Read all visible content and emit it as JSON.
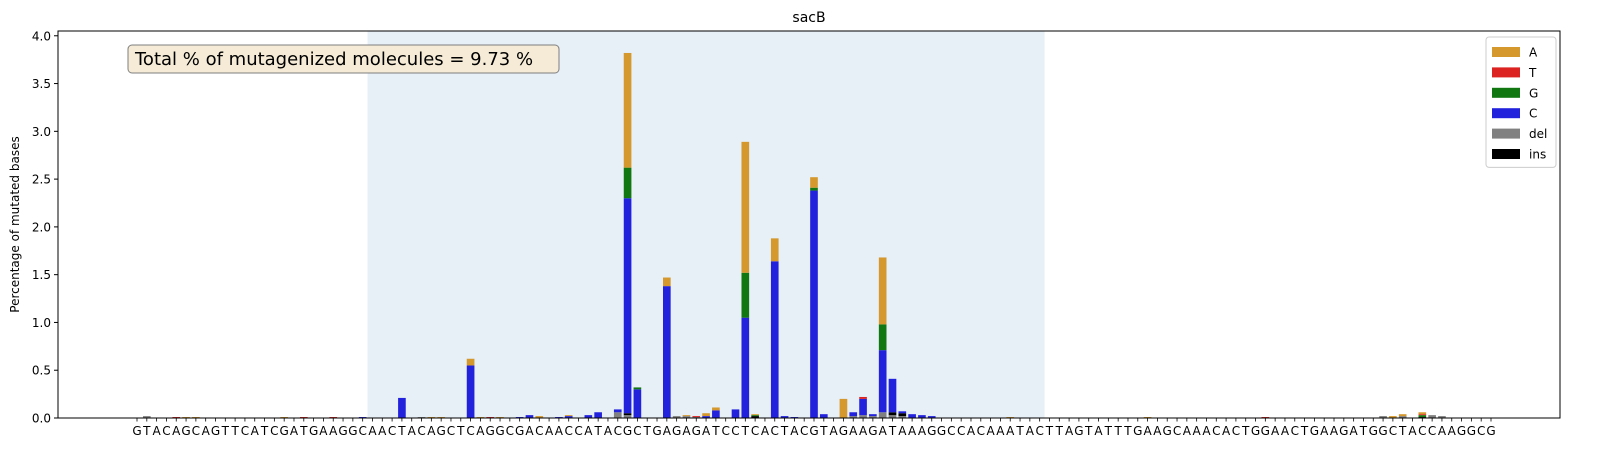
{
  "chart_data": {
    "type": "bar",
    "stacked": true,
    "title": "sacB",
    "xlabel": "",
    "ylabel": "Percentage of mutated bases",
    "ylim": [
      0,
      4.05
    ],
    "yticks": [
      "0.0",
      "0.5",
      "1.0",
      "1.5",
      "2.0",
      "2.5",
      "3.0",
      "3.5",
      "4.0"
    ],
    "legend_position": "top-right",
    "grid": false,
    "annotation": "Total % of mutagenized molecules = 9.73 %",
    "highlight_region": {
      "start_index": 24,
      "end_index": 93
    },
    "categories": [
      "G",
      "T",
      "A",
      "C",
      "A",
      "G",
      "C",
      "A",
      "G",
      "T",
      "T",
      "C",
      "A",
      "T",
      "C",
      "G",
      "A",
      "T",
      "G",
      "A",
      "A",
      "G",
      "G",
      "C",
      "A",
      "A",
      "C",
      "T",
      "A",
      "C",
      "A",
      "G",
      "C",
      "T",
      "C",
      "A",
      "G",
      "G",
      "C",
      "G",
      "A",
      "C",
      "A",
      "A",
      "C",
      "C",
      "A",
      "T",
      "A",
      "C",
      "G",
      "C",
      "T",
      "G",
      "A",
      "G",
      "A",
      "G",
      "A",
      "T",
      "C",
      "C",
      "T",
      "C",
      "A",
      "C",
      "T",
      "A",
      "C",
      "G",
      "T",
      "A",
      "G",
      "A",
      "A",
      "G",
      "A",
      "T",
      "A",
      "A",
      "A",
      "G",
      "G",
      "C",
      "C",
      "A",
      "C",
      "A",
      "A",
      "A",
      "T",
      "A",
      "C",
      "T",
      "T",
      "A",
      "G",
      "T",
      "A",
      "T",
      "T",
      "T",
      "G",
      "A",
      "A",
      "G",
      "C",
      "A",
      "A",
      "A",
      "C",
      "A",
      "C",
      "T",
      "G",
      "G",
      "A",
      "A",
      "C",
      "T",
      "G",
      "A",
      "A",
      "G",
      "A",
      "T",
      "G",
      "G",
      "C",
      "T",
      "A",
      "C",
      "C",
      "A",
      "A",
      "G",
      "G",
      "C",
      "G"
    ],
    "series": [
      {
        "name": "del",
        "color": "#808080",
        "values": {
          "1": 0.02,
          "29": 0.01,
          "49": 0.06,
          "50": 0.03,
          "55": 0.02,
          "56": 0.02,
          "57": 0.01,
          "73": 0.02,
          "74": 0.03,
          "75": 0.02,
          "76": 0.06,
          "77": 0.03,
          "78": 0.02,
          "127": 0.02,
          "129": 0.02,
          "132": 0.03,
          "133": 0.02
        }
      },
      {
        "name": "ins",
        "color": "#000000",
        "values": {
          "50": 0.02,
          "63": 0.02,
          "77": 0.03,
          "78": 0.03,
          "131": 0.01
        }
      },
      {
        "name": "C",
        "color": "#2222dd",
        "values": {
          "23": 0.01,
          "27": 0.21,
          "34": 0.55,
          "39": 0.01,
          "40": 0.03,
          "43": 0.01,
          "44": 0.02,
          "46": 0.03,
          "47": 0.06,
          "49": 0.03,
          "50": 2.25,
          "51": 0.3,
          "54": 1.38,
          "58": 0.02,
          "59": 0.08,
          "61": 0.09,
          "62": 1.05,
          "65": 1.64,
          "66": 0.02,
          "67": 0.01,
          "69": 2.38,
          "70": 0.04,
          "73": 0.04,
          "74": 0.17,
          "75": 0.02,
          "76": 0.65,
          "77": 0.35,
          "78": 0.02,
          "79": 0.04,
          "80": 0.03,
          "81": 0.02
        }
      },
      {
        "name": "G",
        "color": "#117711",
        "values": {
          "50": 0.32,
          "51": 0.02,
          "62": 0.47,
          "63": 0.01,
          "69": 0.03,
          "72": 0.0,
          "76": 0.27,
          "131": 0.02
        }
      },
      {
        "name": "T",
        "color": "#dd2222",
        "values": {
          "4": 0.01,
          "17": 0.01,
          "20": 0.01,
          "36": 0.01,
          "57": 0.01,
          "74": 0.02,
          "131": 0.01,
          "115": 0.01
        }
      },
      {
        "name": "A",
        "color": "#d4982c",
        "values": {
          "5": 0.01,
          "6": 0.01,
          "15": 0.01,
          "30": 0.01,
          "31": 0.01,
          "34": 0.07,
          "35": 0.01,
          "37": 0.01,
          "41": 0.02,
          "44": 0.01,
          "50": 1.2,
          "54": 0.09,
          "56": 0.01,
          "58": 0.03,
          "59": 0.03,
          "62": 1.37,
          "63": 0.01,
          "65": 0.24,
          "69": 0.11,
          "72": 0.2,
          "76": 0.7,
          "89": 0.01,
          "103": 0.01,
          "128": 0.02,
          "129": 0.02,
          "131": 0.02
        }
      }
    ]
  }
}
